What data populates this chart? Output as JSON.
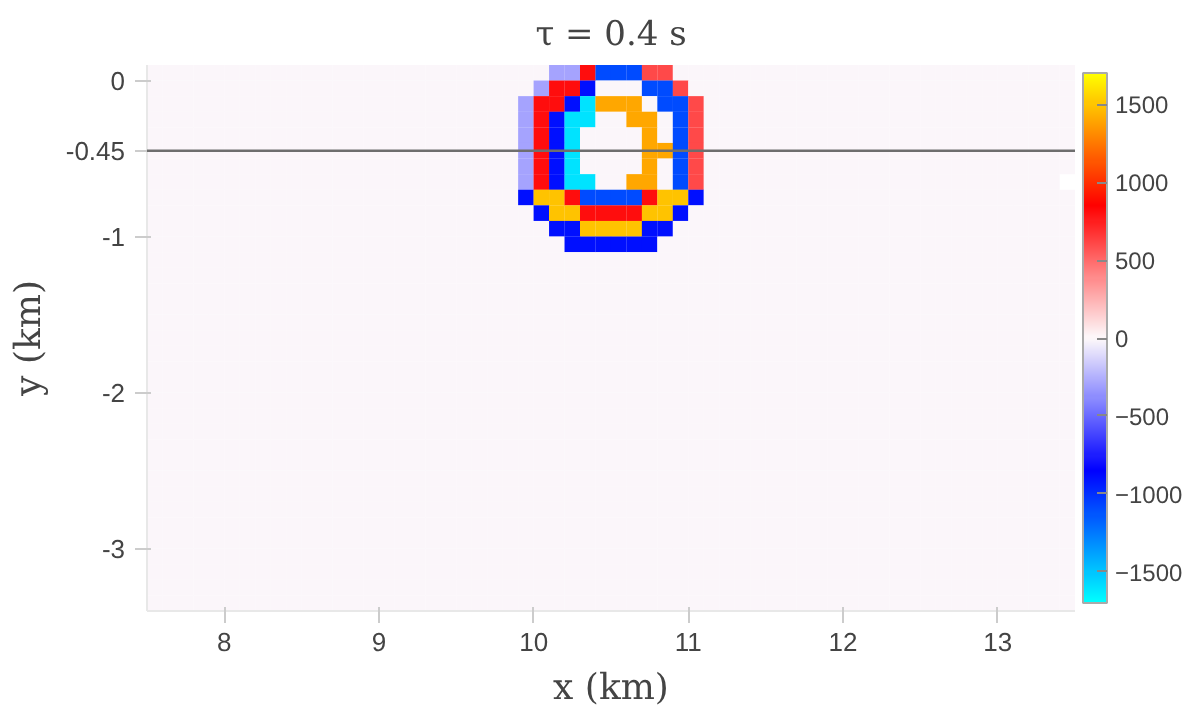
{
  "chart_data": {
    "type": "heatmap",
    "title": "τ = 0.4 s",
    "xlabel": "x (km)",
    "ylabel": "y (km)",
    "xlim": [
      7.5,
      13.5
    ],
    "ylim": [
      -3.4,
      0.1
    ],
    "xticks": [
      8,
      9,
      10,
      11,
      12,
      13
    ],
    "yticks": [
      0,
      -0.45,
      -1,
      -2,
      -3
    ],
    "clim": [
      -1700,
      1700
    ],
    "cticks": [
      -1500,
      -1000,
      -500,
      0,
      500,
      1000,
      1500
    ],
    "grid": false,
    "ref_lines": [
      {
        "axis": "y",
        "value": -0.45,
        "color": "#6e6e6e"
      }
    ],
    "cells": [
      [
        0,
        0,
        0,
        0,
        0,
        0,
        0,
        0,
        0,
        0,
        0,
        0,
        0,
        0,
        0,
        0,
        0,
        0,
        0,
        0,
        0,
        0,
        0,
        0,
        0,
        0,
        -300,
        -300,
        800,
        -1100,
        -1100,
        -1100,
        600,
        600,
        0,
        0,
        0,
        0,
        0,
        0,
        0,
        0,
        0,
        0,
        0,
        0,
        0,
        0,
        0,
        0,
        0,
        0,
        0,
        0,
        0,
        0,
        0,
        0,
        0,
        0
      ],
      [
        0,
        0,
        0,
        0,
        0,
        0,
        0,
        0,
        0,
        0,
        0,
        0,
        0,
        0,
        0,
        0,
        0,
        0,
        0,
        0,
        0,
        0,
        0,
        0,
        0,
        -300,
        800,
        800,
        -900,
        0,
        0,
        0,
        -1100,
        -1100,
        600,
        0,
        0,
        0,
        0,
        0,
        0,
        0,
        0,
        0,
        0,
        0,
        0,
        0,
        0,
        0,
        0,
        0,
        0,
        0,
        0,
        0,
        0,
        0,
        0,
        0
      ],
      [
        0,
        0,
        0,
        0,
        0,
        0,
        0,
        0,
        0,
        0,
        0,
        0,
        0,
        0,
        0,
        0,
        0,
        0,
        0,
        0,
        0,
        0,
        0,
        0,
        -300,
        800,
        800,
        -900,
        -1600,
        1400,
        1400,
        1400,
        0,
        -1100,
        -1100,
        600,
        0,
        0,
        0,
        0,
        0,
        0,
        0,
        0,
        0,
        0,
        0,
        0,
        0,
        0,
        0,
        0,
        0,
        0,
        0,
        0,
        0,
        0,
        0,
        0
      ],
      [
        0,
        0,
        0,
        0,
        0,
        0,
        0,
        0,
        0,
        0,
        0,
        0,
        0,
        0,
        0,
        0,
        0,
        0,
        0,
        0,
        0,
        0,
        0,
        0,
        -300,
        800,
        -900,
        -1600,
        -1600,
        0,
        0,
        1400,
        1400,
        0,
        -1100,
        600,
        0,
        0,
        0,
        0,
        0,
        0,
        0,
        0,
        0,
        0,
        0,
        0,
        0,
        0,
        0,
        0,
        0,
        0,
        0,
        0,
        0,
        0,
        0,
        0
      ],
      [
        0,
        0,
        0,
        0,
        0,
        0,
        0,
        0,
        0,
        0,
        0,
        0,
        0,
        0,
        0,
        0,
        0,
        0,
        0,
        0,
        0,
        0,
        0,
        0,
        -300,
        800,
        -900,
        -1600,
        0,
        0,
        0,
        0,
        1400,
        0,
        -1100,
        600,
        0,
        0,
        0,
        0,
        0,
        0,
        0,
        0,
        0,
        0,
        0,
        0,
        0,
        0,
        0,
        0,
        0,
        0,
        0,
        0,
        0,
        0,
        0,
        0
      ],
      [
        0,
        0,
        0,
        0,
        0,
        0,
        0,
        0,
        0,
        0,
        0,
        0,
        0,
        0,
        0,
        0,
        0,
        0,
        0,
        0,
        0,
        0,
        0,
        0,
        -300,
        800,
        -900,
        -1600,
        0,
        0,
        0,
        0,
        1400,
        1400,
        -1100,
        600,
        0,
        0,
        0,
        0,
        0,
        0,
        0,
        0,
        0,
        0,
        0,
        0,
        0,
        0,
        0,
        0,
        0,
        0,
        0,
        0,
        0,
        0,
        0,
        0
      ],
      [
        0,
        0,
        0,
        0,
        0,
        0,
        0,
        0,
        0,
        0,
        0,
        0,
        0,
        0,
        0,
        0,
        0,
        0,
        0,
        0,
        0,
        0,
        0,
        0,
        -300,
        800,
        -900,
        -1600,
        0,
        0,
        0,
        0,
        1400,
        0,
        -1100,
        600,
        0,
        0,
        0,
        0,
        0,
        0,
        0,
        0,
        0,
        0,
        0,
        0,
        0,
        0,
        0,
        0,
        0,
        0,
        0,
        0,
        0,
        0,
        0,
        0
      ],
      [
        0,
        0,
        0,
        0,
        0,
        0,
        0,
        0,
        0,
        0,
        0,
        0,
        0,
        0,
        0,
        0,
        0,
        0,
        0,
        0,
        0,
        0,
        0,
        0,
        -300,
        800,
        -900,
        -1600,
        -1600,
        0,
        0,
        1400,
        1400,
        0,
        -1100,
        600,
        0,
        0,
        0,
        0,
        0,
        0,
        0,
        0,
        0,
        0,
        0,
        0,
        0,
        0,
        0,
        0,
        0,
        0,
        0,
        0,
        0,
        0,
        0
      ],
      [
        0,
        0,
        0,
        0,
        0,
        0,
        0,
        0,
        0,
        0,
        0,
        0,
        0,
        0,
        0,
        0,
        0,
        0,
        0,
        0,
        0,
        0,
        0,
        0,
        -900,
        1500,
        1500,
        800,
        -1100,
        -1100,
        -1100,
        -1100,
        800,
        1500,
        1500,
        -900,
        0,
        0,
        0,
        0,
        0,
        0,
        0,
        0,
        0,
        0,
        0,
        0,
        0,
        0,
        0,
        0,
        0,
        0,
        0,
        0,
        0,
        0,
        0,
        0
      ],
      [
        0,
        0,
        0,
        0,
        0,
        0,
        0,
        0,
        0,
        0,
        0,
        0,
        0,
        0,
        0,
        0,
        0,
        0,
        0,
        0,
        0,
        0,
        0,
        0,
        0,
        -900,
        1500,
        1500,
        800,
        800,
        800,
        800,
        1500,
        1500,
        -900,
        0,
        0,
        0,
        0,
        0,
        0,
        0,
        0,
        0,
        0,
        0,
        0,
        0,
        0,
        0,
        0,
        0,
        0,
        0,
        0,
        0,
        0,
        0,
        0,
        0
      ],
      [
        0,
        0,
        0,
        0,
        0,
        0,
        0,
        0,
        0,
        0,
        0,
        0,
        0,
        0,
        0,
        0,
        0,
        0,
        0,
        0,
        0,
        0,
        0,
        0,
        0,
        0,
        -900,
        -900,
        1500,
        1500,
        1500,
        1500,
        -900,
        -900,
        0,
        0,
        0,
        0,
        0,
        0,
        0,
        0,
        0,
        0,
        0,
        0,
        0,
        0,
        0,
        0,
        0,
        0,
        0,
        0,
        0,
        0,
        0,
        0,
        0,
        0
      ],
      [
        0,
        0,
        0,
        0,
        0,
        0,
        0,
        0,
        0,
        0,
        0,
        0,
        0,
        0,
        0,
        0,
        0,
        0,
        0,
        0,
        0,
        0,
        0,
        0,
        0,
        0,
        0,
        -900,
        -900,
        -900,
        -900,
        -900,
        -900,
        0,
        0,
        0,
        0,
        0,
        0,
        0,
        0,
        0,
        0,
        0,
        0,
        0,
        0,
        0,
        0,
        0,
        0,
        0,
        0,
        0,
        0,
        0,
        0,
        0,
        0,
        0
      ],
      [
        0,
        0,
        0,
        0,
        0,
        0,
        0,
        0,
        0,
        0,
        0,
        0,
        0,
        0,
        0,
        0,
        0,
        0,
        0,
        0,
        0,
        0,
        0,
        0,
        0,
        0,
        0,
        0,
        0,
        0,
        0,
        0,
        0,
        0,
        0,
        0,
        0,
        0,
        0,
        0,
        0,
        0,
        0,
        0,
        0,
        0,
        0,
        0,
        0,
        0,
        0,
        0,
        0,
        0,
        0,
        0,
        0,
        0,
        0,
        0
      ],
      [
        0,
        0,
        0,
        0,
        0,
        0,
        0,
        0,
        0,
        0,
        0,
        0,
        0,
        0,
        0,
        0,
        0,
        0,
        0,
        0,
        0,
        0,
        0,
        0,
        0,
        0,
        0,
        0,
        0,
        0,
        0,
        0,
        0,
        0,
        0,
        0,
        0,
        0,
        0,
        0,
        0,
        0,
        0,
        0,
        0,
        0,
        0,
        0,
        0,
        0,
        0,
        0,
        0,
        0,
        0,
        0,
        0,
        0,
        0,
        0
      ],
      [
        0,
        0,
        0,
        0,
        0,
        0,
        0,
        0,
        0,
        0,
        0,
        0,
        0,
        0,
        0,
        0,
        0,
        0,
        0,
        0,
        0,
        0,
        0,
        0,
        0,
        0,
        0,
        0,
        0,
        0,
        0,
        0,
        0,
        0,
        0,
        0,
        0,
        0,
        0,
        0,
        0,
        0,
        0,
        0,
        0,
        0,
        0,
        0,
        0,
        0,
        0,
        0,
        0,
        0,
        0,
        0,
        0,
        0,
        0,
        0
      ],
      [
        0,
        0,
        0,
        0,
        0,
        0,
        0,
        0,
        0,
        0,
        0,
        0,
        0,
        0,
        0,
        0,
        0,
        0,
        0,
        0,
        0,
        0,
        0,
        0,
        0,
        0,
        0,
        0,
        0,
        0,
        0,
        0,
        0,
        0,
        0,
        0,
        0,
        0,
        0,
        0,
        0,
        0,
        0,
        0,
        0,
        0,
        0,
        0,
        0,
        0,
        0,
        0,
        0,
        0,
        0,
        0,
        0,
        0,
        0,
        0
      ],
      [
        0,
        0,
        0,
        0,
        0,
        0,
        0,
        0,
        0,
        0,
        0,
        0,
        0,
        0,
        0,
        0,
        0,
        0,
        0,
        0,
        0,
        0,
        0,
        0,
        0,
        0,
        0,
        0,
        0,
        0,
        0,
        0,
        0,
        0,
        0,
        0,
        0,
        0,
        0,
        0,
        0,
        0,
        0,
        0,
        0,
        0,
        0,
        0,
        0,
        0,
        0,
        0,
        0,
        0,
        0,
        0,
        0,
        0,
        0,
        0
      ],
      [
        0,
        0,
        0,
        0,
        0,
        0,
        0,
        0,
        0,
        0,
        0,
        0,
        0,
        0,
        0,
        0,
        0,
        0,
        0,
        0,
        0,
        0,
        0,
        0,
        0,
        0,
        0,
        0,
        0,
        0,
        0,
        0,
        0,
        0,
        0,
        0,
        0,
        0,
        0,
        0,
        0,
        0,
        0,
        0,
        0,
        0,
        0,
        0,
        0,
        0,
        0,
        0,
        0,
        0,
        0,
        0,
        0,
        0,
        0,
        0
      ],
      [
        0,
        0,
        0,
        0,
        0,
        0,
        0,
        0,
        0,
        0,
        0,
        0,
        0,
        0,
        0,
        0,
        0,
        0,
        0,
        0,
        0,
        0,
        0,
        0,
        0,
        0,
        0,
        0,
        0,
        0,
        0,
        0,
        0,
        0,
        0,
        0,
        0,
        0,
        0,
        0,
        0,
        0,
        0,
        0,
        0,
        0,
        0,
        0,
        0,
        0,
        0,
        0,
        0,
        0,
        0,
        0,
        0,
        0,
        0,
        0
      ],
      [
        0,
        0,
        0,
        0,
        0,
        0,
        0,
        0,
        0,
        0,
        0,
        0,
        0,
        0,
        0,
        0,
        0,
        0,
        0,
        0,
        0,
        0,
        0,
        0,
        0,
        0,
        0,
        0,
        0,
        0,
        0,
        0,
        0,
        0,
        0,
        0,
        0,
        0,
        0,
        0,
        0,
        0,
        0,
        0,
        0,
        0,
        0,
        0,
        0,
        0,
        0,
        0,
        0,
        0,
        0,
        0,
        0,
        0,
        0,
        0
      ],
      [
        0,
        0,
        0,
        0,
        0,
        0,
        0,
        0,
        0,
        0,
        0,
        0,
        0,
        0,
        0,
        0,
        0,
        0,
        0,
        0,
        0,
        0,
        0,
        0,
        0,
        0,
        0,
        0,
        0,
        0,
        0,
        0,
        0,
        0,
        0,
        0,
        0,
        0,
        0,
        0,
        0,
        0,
        0,
        0,
        0,
        0,
        0,
        0,
        0,
        0,
        0,
        0,
        0,
        0,
        0,
        0,
        0,
        0,
        0,
        0
      ],
      [
        0,
        0,
        0,
        0,
        0,
        0,
        0,
        0,
        0,
        0,
        0,
        0,
        0,
        0,
        0,
        0,
        0,
        0,
        0,
        0,
        0,
        0,
        0,
        0,
        0,
        0,
        0,
        0,
        0,
        0,
        0,
        0,
        0,
        0,
        0,
        0,
        0,
        0,
        0,
        0,
        0,
        0,
        0,
        0,
        0,
        0,
        0,
        0,
        0,
        0,
        0,
        0,
        0,
        0,
        0,
        0,
        0,
        0,
        0,
        0
      ],
      [
        0,
        0,
        0,
        0,
        0,
        0,
        0,
        0,
        0,
        0,
        0,
        0,
        0,
        0,
        0,
        0,
        0,
        0,
        0,
        0,
        0,
        0,
        0,
        0,
        0,
        0,
        0,
        0,
        0,
        0,
        0,
        0,
        0,
        0,
        0,
        0,
        0,
        0,
        0,
        0,
        0,
        0,
        0,
        0,
        0,
        0,
        0,
        0,
        0,
        0,
        0,
        0,
        0,
        0,
        0,
        0,
        0,
        0,
        0,
        0
      ],
      [
        0,
        0,
        0,
        0,
        0,
        0,
        0,
        0,
        0,
        0,
        0,
        0,
        0,
        0,
        0,
        0,
        0,
        0,
        0,
        0,
        0,
        0,
        0,
        0,
        0,
        0,
        0,
        0,
        0,
        0,
        0,
        0,
        0,
        0,
        0,
        0,
        0,
        0,
        0,
        0,
        0,
        0,
        0,
        0,
        0,
        0,
        0,
        0,
        0,
        0,
        0,
        0,
        0,
        0,
        0,
        0,
        0,
        0,
        0,
        0
      ],
      [
        0,
        0,
        0,
        0,
        0,
        0,
        0,
        0,
        0,
        0,
        0,
        0,
        0,
        0,
        0,
        0,
        0,
        0,
        0,
        0,
        0,
        0,
        0,
        0,
        0,
        0,
        0,
        0,
        0,
        0,
        0,
        0,
        0,
        0,
        0,
        0,
        0,
        0,
        0,
        0,
        0,
        0,
        0,
        0,
        0,
        0,
        0,
        0,
        0,
        0,
        0,
        0,
        0,
        0,
        0,
        0,
        0,
        0,
        0,
        0
      ],
      [
        0,
        0,
        0,
        0,
        0,
        0,
        0,
        0,
        0,
        0,
        0,
        0,
        0,
        0,
        0,
        0,
        0,
        0,
        0,
        0,
        0,
        0,
        0,
        0,
        0,
        0,
        0,
        0,
        0,
        0,
        0,
        0,
        0,
        0,
        0,
        0,
        0,
        0,
        0,
        0,
        0,
        0,
        0,
        0,
        0,
        0,
        0,
        0,
        0,
        0,
        0,
        0,
        0,
        0,
        0,
        0,
        0,
        0,
        0,
        0
      ],
      [
        0,
        0,
        0,
        0,
        0,
        0,
        0,
        0,
        0,
        0,
        0,
        0,
        0,
        0,
        0,
        0,
        0,
        0,
        0,
        0,
        0,
        0,
        0,
        0,
        0,
        0,
        0,
        0,
        0,
        0,
        0,
        0,
        0,
        0,
        0,
        0,
        0,
        0,
        0,
        0,
        0,
        0,
        0,
        0,
        0,
        0,
        0,
        0,
        0,
        0,
        0,
        0,
        0,
        0,
        0,
        0,
        0,
        0,
        0,
        0
      ],
      [
        0,
        0,
        0,
        0,
        0,
        0,
        0,
        0,
        0,
        0,
        0,
        0,
        0,
        0,
        0,
        0,
        0,
        0,
        0,
        0,
        0,
        0,
        0,
        0,
        0,
        0,
        0,
        0,
        0,
        0,
        0,
        0,
        0,
        0,
        0,
        0,
        0,
        0,
        0,
        0,
        0,
        0,
        0,
        0,
        0,
        0,
        0,
        0,
        0,
        0,
        0,
        0,
        0,
        0,
        0,
        0,
        0,
        0,
        0,
        0
      ],
      [
        0,
        0,
        0,
        0,
        0,
        0,
        0,
        0,
        0,
        0,
        0,
        0,
        0,
        0,
        0,
        0,
        0,
        0,
        0,
        0,
        0,
        0,
        0,
        0,
        0,
        0,
        0,
        0,
        0,
        0,
        0,
        0,
        0,
        0,
        0,
        0,
        0,
        0,
        0,
        0,
        0,
        0,
        0,
        0,
        0,
        0,
        0,
        0,
        0,
        0,
        0,
        0,
        0,
        0,
        0,
        0,
        0,
        0,
        0,
        0
      ],
      [
        0,
        0,
        0,
        0,
        0,
        0,
        0,
        0,
        0,
        0,
        0,
        0,
        0,
        0,
        0,
        0,
        0,
        0,
        0,
        0,
        0,
        0,
        0,
        0,
        0,
        0,
        0,
        0,
        0,
        0,
        0,
        0,
        0,
        0,
        0,
        0,
        0,
        0,
        0,
        0,
        0,
        0,
        0,
        0,
        0,
        0,
        0,
        0,
        0,
        0,
        0,
        0,
        0,
        0,
        0,
        0,
        0,
        0,
        0,
        0
      ],
      [
        0,
        0,
        0,
        0,
        0,
        0,
        0,
        0,
        0,
        0,
        0,
        0,
        0,
        0,
        0,
        0,
        0,
        0,
        0,
        0,
        0,
        0,
        0,
        0,
        0,
        0,
        0,
        0,
        0,
        0,
        0,
        0,
        0,
        0,
        0,
        0,
        0,
        0,
        0,
        0,
        0,
        0,
        0,
        0,
        0,
        0,
        0,
        0,
        0,
        0,
        0,
        0,
        0,
        0,
        0,
        0,
        0,
        0,
        0,
        0
      ],
      [
        0,
        0,
        0,
        0,
        0,
        0,
        0,
        0,
        0,
        0,
        0,
        0,
        0,
        0,
        0,
        0,
        0,
        0,
        0,
        0,
        0,
        0,
        0,
        0,
        0,
        0,
        0,
        0,
        0,
        0,
        0,
        0,
        0,
        0,
        0,
        0,
        0,
        0,
        0,
        0,
        0,
        0,
        0,
        0,
        0,
        0,
        0,
        0,
        0,
        0,
        0,
        0,
        0,
        0,
        0,
        0,
        0,
        0,
        0,
        0
      ],
      [
        0,
        0,
        0,
        0,
        0,
        0,
        0,
        0,
        0,
        0,
        0,
        0,
        0,
        0,
        0,
        0,
        0,
        0,
        0,
        0,
        0,
        0,
        0,
        0,
        0,
        0,
        0,
        0,
        0,
        0,
        0,
        0,
        0,
        0,
        0,
        0,
        0,
        0,
        0,
        0,
        0,
        0,
        0,
        0,
        0,
        0,
        0,
        0,
        0,
        0,
        0,
        0,
        0,
        0,
        0,
        0,
        0,
        0,
        0,
        0
      ],
      [
        0,
        0,
        0,
        0,
        0,
        0,
        0,
        0,
        0,
        0,
        0,
        0,
        0,
        0,
        0,
        0,
        0,
        0,
        0,
        0,
        0,
        0,
        0,
        0,
        0,
        0,
        0,
        0,
        0,
        0,
        0,
        0,
        0,
        0,
        0,
        0,
        0,
        0,
        0,
        0,
        0,
        0,
        0,
        0,
        0,
        0,
        0,
        0,
        0,
        0,
        0,
        0,
        0,
        0,
        0,
        0,
        0,
        0,
        0,
        0
      ],
      [
        0,
        0,
        0,
        0,
        0,
        0,
        0,
        0,
        0,
        0,
        0,
        0,
        0,
        0,
        0,
        0,
        0,
        0,
        0,
        0,
        0,
        0,
        0,
        0,
        0,
        0,
        0,
        0,
        0,
        0,
        0,
        0,
        0,
        0,
        0,
        0,
        0,
        0,
        0,
        0,
        0,
        0,
        0,
        0,
        0,
        0,
        0,
        0,
        0,
        0,
        0,
        0,
        0,
        0,
        0,
        0,
        0,
        0,
        0,
        0
      ]
    ]
  }
}
